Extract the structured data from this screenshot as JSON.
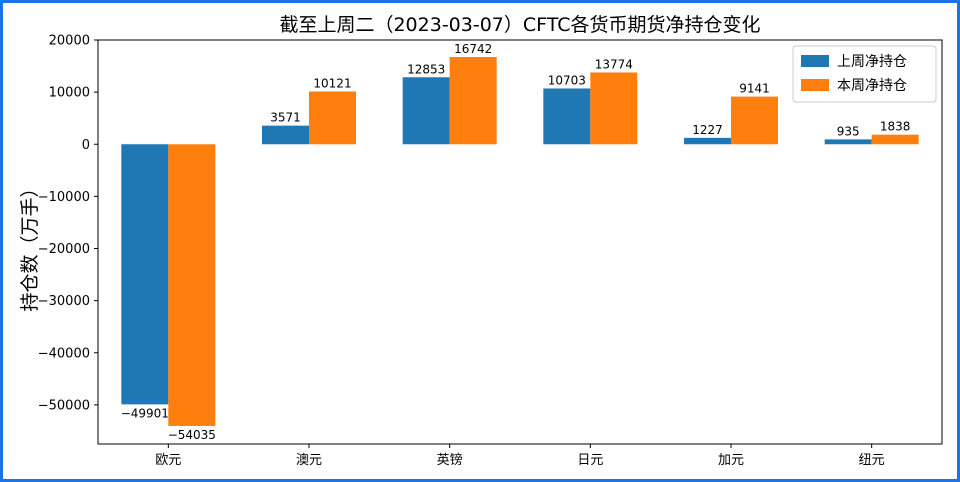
{
  "chart_data": {
    "type": "bar",
    "title": "截至上周二（2023-03-07）CFTC各货币期货净持仓变化",
    "xlabel": "",
    "ylabel": "持仓数（万手）",
    "categories": [
      "欧元",
      "澳元",
      "英镑",
      "日元",
      "加元",
      "纽元"
    ],
    "series": [
      {
        "name": "上周净持仓",
        "color": "#1f77b4",
        "values": [
          -49901,
          3571,
          12853,
          10703,
          1227,
          935
        ]
      },
      {
        "name": "本周净持仓",
        "color": "#ff7f0e",
        "values": [
          -54035,
          10121,
          16742,
          13774,
          9141,
          1838
        ]
      }
    ],
    "ylim": [
      -57500,
      20000
    ],
    "yticks": [
      20000,
      10000,
      0,
      -10000,
      -20000,
      -30000,
      -40000,
      -50000
    ],
    "legend_position": "top-right",
    "grid": false
  }
}
